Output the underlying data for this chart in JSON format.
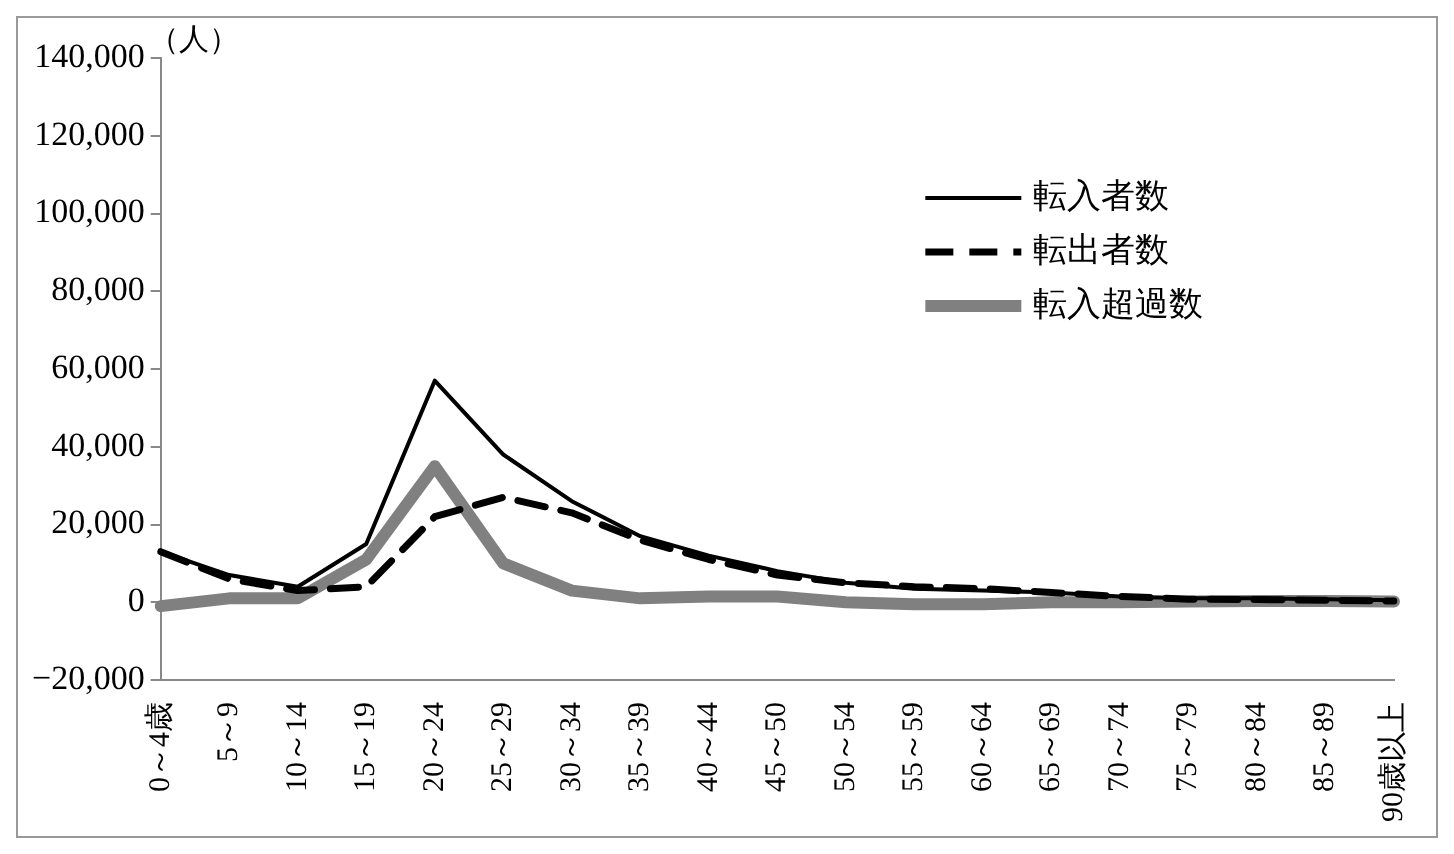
{
  "chart_data": {
    "type": "line",
    "ylabel": "（人）",
    "categories": [
      "0～4歳",
      "5～9",
      "10～14",
      "15～19",
      "20～24",
      "25～29",
      "30～34",
      "35～39",
      "40～44",
      "45～50",
      "50～54",
      "55～59",
      "60～64",
      "65～69",
      "70～74",
      "75～79",
      "80～84",
      "85～89",
      "90歳以上"
    ],
    "series": [
      {
        "name": "転入者数",
        "color": "#000000",
        "line_style": "solid",
        "values": [
          13000,
          7000,
          4000,
          15000,
          57000,
          38000,
          26000,
          17000,
          12000,
          8000,
          5000,
          3500,
          3000,
          2500,
          1500,
          1000,
          1000,
          800,
          500
        ]
      },
      {
        "name": "転出者数",
        "color": "#000000",
        "line_style": "dashed",
        "values": [
          13000,
          6000,
          3000,
          4000,
          22000,
          27000,
          23000,
          16000,
          11000,
          7000,
          5000,
          4000,
          3500,
          2500,
          1500,
          800,
          700,
          500,
          300
        ]
      },
      {
        "name": "転入超過数",
        "color": "#808080",
        "line_style": "solid",
        "values": [
          -1000,
          1000,
          1000,
          11000,
          35000,
          10000,
          3000,
          1000,
          1500,
          1500,
          0,
          -500,
          -500,
          0,
          0,
          200,
          300,
          300,
          200
        ]
      }
    ],
    "ylim": [
      -20000,
      140000
    ],
    "yticks": [
      {
        "value": -20000,
        "label": "−20,000"
      },
      0,
      {
        "value": 20000,
        "label": "20,000"
      },
      {
        "value": 40000,
        "label": "40,000"
      },
      {
        "value": 60000,
        "label": "60,000"
      },
      {
        "value": 80000,
        "label": "80,000"
      },
      {
        "value": 100000,
        "label": "100,000"
      },
      {
        "value": 120000,
        "label": "120,000"
      },
      {
        "value": 140000,
        "label": "140,000"
      }
    ],
    "grid": false,
    "legend": "right",
    "marker": "none"
  }
}
